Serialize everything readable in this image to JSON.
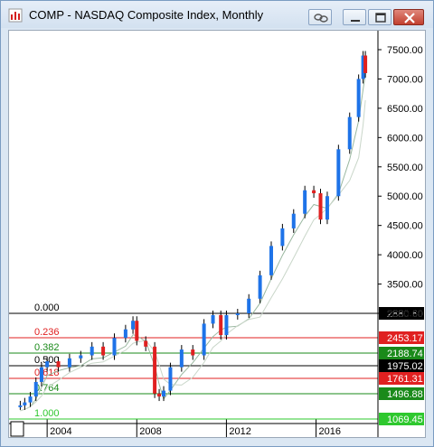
{
  "window": {
    "title": "COMP - NASDAQ Composite Index, Monthly",
    "icon": "chart-app-icon",
    "buttons": [
      {
        "name": "link-button",
        "icon": "link-chain-icon"
      },
      {
        "name": "minimize-button",
        "icon": "minimize-icon"
      },
      {
        "name": "restore-button",
        "icon": "restore-icon"
      },
      {
        "name": "close-button",
        "icon": "close-icon"
      }
    ]
  },
  "chart_data": {
    "type": "candlestick",
    "title": "",
    "xlabel": "",
    "ylabel": "",
    "x_ticks": [
      "2004",
      "2008",
      "2012",
      "2016"
    ],
    "y_ticks": [
      "3000.00",
      "3500.00",
      "4000.00",
      "4500.00",
      "5000.00",
      "5500.00",
      "6000.00",
      "6500.00",
      "7000.00",
      "7500.00"
    ],
    "ylim_upper_axis": [
      2880.6,
      7700
    ],
    "lower_panel": {
      "fib_levels": [
        {
          "ratio": "0.000",
          "value": "2880.60",
          "color": "#000000"
        },
        {
          "ratio": "0.236",
          "value": "2453.17",
          "color": "#e02020"
        },
        {
          "ratio": "0.382",
          "value": "2188.74",
          "color": "#1a8a1a"
        },
        {
          "ratio": "0.500",
          "value": "1975.02",
          "color": "#000000"
        },
        {
          "ratio": "0.618",
          "value": "1761.31",
          "color": "#e02020"
        },
        {
          "ratio": "0.764",
          "value": "1496.88",
          "color": "#1a8a1a"
        },
        {
          "ratio": "1.000",
          "value": "1069.45",
          "color": "#2ec82e"
        }
      ]
    },
    "series": [
      {
        "name": "",
        "x": [
          2002.8,
          2003.0,
          2003.25,
          2003.5,
          2003.75,
          2004.0,
          2004.5,
          2005.0,
          2005.5,
          2006.0,
          2006.5,
          2007.0,
          2007.5,
          2007.83,
          2008.0,
          2008.4,
          2008.8,
          2009.0,
          2009.2,
          2009.5,
          2010.0,
          2010.5,
          2011.0,
          2011.4,
          2011.75,
          2012.0,
          2012.5,
          2013.0,
          2013.5,
          2014.0,
          2014.5,
          2015.0,
          2015.5,
          2015.9,
          2016.2,
          2016.5,
          2017.0,
          2017.5,
          2017.9,
          2018.1,
          2018.2
        ],
        "values": [
          1300,
          1350,
          1450,
          1700,
          1950,
          2050,
          1950,
          2100,
          2150,
          2300,
          2150,
          2450,
          2600,
          2750,
          2400,
          2300,
          1500,
          1450,
          1550,
          1950,
          2250,
          2150,
          2700,
          2850,
          2500,
          2850,
          2900,
          3250,
          3650,
          4150,
          4450,
          4700,
          5100,
          5050,
          4600,
          5000,
          5800,
          6350,
          7000,
          7400,
          7100
        ]
      }
    ]
  }
}
